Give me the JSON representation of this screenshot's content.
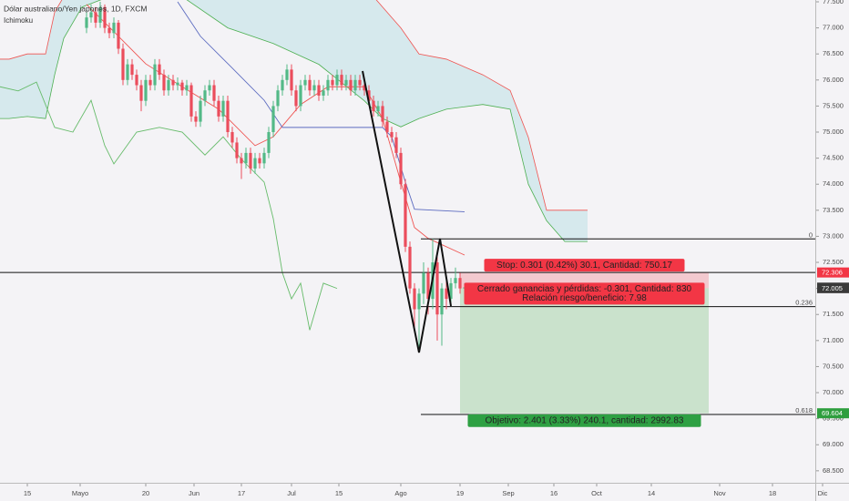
{
  "chart_data": {
    "type": "candlestick",
    "title": "Dólar australiano/Yen japonés, 1D, FXCM",
    "indicator": "Ichimoku",
    "up_color": "#53b987",
    "down_color": "#eb4d5c",
    "xlim": [
      0,
      181
    ],
    "ylim": [
      68.27,
      77.535
    ],
    "grid": false,
    "xticks": [
      {
        "value": 6,
        "label": "15"
      },
      {
        "value": 17.6,
        "label": "Mayo"
      },
      {
        "value": 32,
        "label": "20"
      },
      {
        "value": 42.6,
        "label": "Jun"
      },
      {
        "value": 53,
        "label": "17"
      },
      {
        "value": 64,
        "label": "Jul"
      },
      {
        "value": 74.4,
        "label": "15"
      },
      {
        "value": 88,
        "label": "Ago"
      },
      {
        "value": 101,
        "label": "19"
      },
      {
        "value": 111.6,
        "label": "Sep"
      },
      {
        "value": 121.6,
        "label": "16"
      },
      {
        "value": 131,
        "label": "Oct"
      },
      {
        "value": 143,
        "label": "14"
      },
      {
        "value": 158,
        "label": "Nov"
      },
      {
        "value": 169.6,
        "label": "18"
      },
      {
        "value": 180.6,
        "label": "Dic"
      }
    ],
    "yticks": [
      {
        "value": 68.5,
        "label": "68.500"
      },
      {
        "value": 69,
        "label": "69.000"
      },
      {
        "value": 69.5,
        "label": "69.500"
      },
      {
        "value": 70,
        "label": "70.000"
      },
      {
        "value": 70.5,
        "label": "70.500"
      },
      {
        "value": 71,
        "label": "71.000"
      },
      {
        "value": 71.5,
        "label": "71.500"
      },
      {
        "value": 72,
        "label": "72.000"
      },
      {
        "value": 72.5,
        "label": "72.500"
      },
      {
        "value": 73,
        "label": "73.000"
      },
      {
        "value": 73.5,
        "label": "73.500"
      },
      {
        "value": 74,
        "label": "74.000"
      },
      {
        "value": 74.5,
        "label": "74.500"
      },
      {
        "value": 75,
        "label": "75.000"
      },
      {
        "value": 75.5,
        "label": "75.500"
      },
      {
        "value": 76,
        "label": "76.000"
      },
      {
        "value": 76.5,
        "label": "76.500"
      },
      {
        "value": 77,
        "label": "77.000"
      },
      {
        "value": 77.5,
        "label": "77.500"
      }
    ],
    "x": [
      19,
      20,
      21,
      22,
      23,
      24,
      25,
      26,
      27,
      28,
      29,
      30,
      31,
      32,
      33,
      34,
      35,
      36,
      37,
      38,
      39,
      40,
      41,
      42,
      43,
      44,
      45,
      46,
      47,
      48,
      49,
      50,
      51,
      52,
      53,
      54,
      55,
      56,
      57,
      58,
      59,
      60,
      61,
      62,
      63,
      64,
      65,
      66,
      67,
      68,
      69,
      70,
      71,
      72,
      73,
      74,
      75,
      76,
      77,
      78,
      79,
      80,
      81,
      82,
      83,
      84,
      85,
      86,
      87,
      88,
      89,
      90,
      91,
      92,
      93,
      94,
      95,
      96,
      97,
      98,
      99,
      100,
      101,
      102
    ],
    "candles": [
      [
        77.0,
        77.35,
        76.9,
        77.2
      ],
      [
        77.2,
        77.45,
        77.1,
        77.3
      ],
      [
        77.3,
        77.4,
        77.0,
        77.1
      ],
      [
        77.1,
        77.5,
        77.0,
        77.4
      ],
      [
        77.4,
        77.45,
        76.9,
        77.0
      ],
      [
        77.0,
        77.1,
        76.8,
        76.9
      ],
      [
        76.9,
        77.2,
        76.8,
        77.1
      ],
      [
        77.1,
        77.15,
        76.5,
        76.6
      ],
      [
        76.6,
        76.7,
        75.9,
        76.0
      ],
      [
        76.0,
        76.4,
        75.9,
        76.3
      ],
      [
        76.3,
        76.4,
        76.0,
        76.1
      ],
      [
        76.1,
        76.2,
        75.8,
        75.9
      ],
      [
        75.9,
        76.0,
        75.4,
        75.6
      ],
      [
        75.6,
        76.1,
        75.5,
        76.0
      ],
      [
        76.0,
        76.1,
        75.8,
        75.9
      ],
      [
        75.9,
        76.4,
        75.8,
        76.3
      ],
      [
        76.3,
        76.4,
        76.0,
        76.1
      ],
      [
        76.1,
        76.2,
        75.7,
        75.8
      ],
      [
        75.8,
        76.1,
        75.7,
        76.0
      ],
      [
        76.0,
        76.1,
        75.8,
        75.9
      ],
      [
        75.9,
        76.05,
        75.8,
        75.95
      ],
      [
        75.95,
        76.0,
        75.7,
        75.8
      ],
      [
        75.8,
        76.0,
        75.7,
        75.9
      ],
      [
        75.9,
        75.95,
        75.2,
        75.3
      ],
      [
        75.3,
        75.4,
        75.1,
        75.2
      ],
      [
        75.2,
        75.7,
        75.1,
        75.6
      ],
      [
        75.6,
        75.9,
        75.5,
        75.8
      ],
      [
        75.8,
        76.0,
        75.7,
        75.9
      ],
      [
        75.9,
        76.0,
        75.5,
        75.6
      ],
      [
        75.6,
        75.7,
        75.2,
        75.3
      ],
      [
        75.3,
        75.7,
        75.2,
        75.6
      ],
      [
        75.6,
        75.7,
        74.9,
        75.0
      ],
      [
        75.0,
        75.1,
        74.7,
        74.8
      ],
      [
        74.8,
        74.9,
        74.4,
        74.5
      ],
      [
        74.5,
        74.6,
        74.1,
        74.4
      ],
      [
        74.4,
        74.7,
        74.3,
        74.6
      ],
      [
        74.6,
        74.7,
        74.2,
        74.3
      ],
      [
        74.3,
        74.6,
        74.2,
        74.5
      ],
      [
        74.5,
        74.6,
        74.3,
        74.4
      ],
      [
        74.4,
        74.7,
        74.3,
        74.6
      ],
      [
        74.6,
        75.1,
        74.5,
        75.0
      ],
      [
        75.0,
        75.6,
        74.9,
        75.5
      ],
      [
        75.5,
        75.9,
        75.4,
        75.8
      ],
      [
        75.8,
        76.1,
        75.7,
        76.0
      ],
      [
        76.0,
        76.3,
        75.9,
        76.2
      ],
      [
        76.2,
        76.3,
        75.7,
        75.8
      ],
      [
        75.8,
        75.9,
        75.4,
        75.5
      ],
      [
        75.5,
        76.0,
        75.4,
        75.9
      ],
      [
        75.9,
        76.1,
        75.8,
        76.0
      ],
      [
        76.0,
        76.1,
        75.7,
        75.8
      ],
      [
        75.8,
        76.0,
        75.7,
        75.9
      ],
      [
        75.9,
        76.0,
        75.6,
        75.7
      ],
      [
        75.7,
        75.9,
        75.6,
        75.8
      ],
      [
        75.8,
        76.1,
        75.7,
        76.0
      ],
      [
        76.0,
        76.1,
        75.8,
        75.9
      ],
      [
        75.9,
        76.2,
        75.8,
        76.1
      ],
      [
        76.1,
        76.2,
        75.8,
        75.9
      ],
      [
        75.9,
        76.1,
        75.8,
        76.0
      ],
      [
        76.0,
        76.1,
        75.7,
        75.8
      ],
      [
        75.8,
        76.1,
        75.7,
        76.0
      ],
      [
        76.0,
        76.1,
        75.8,
        75.9
      ],
      [
        75.9,
        76.0,
        75.7,
        75.8
      ],
      [
        75.8,
        75.9,
        75.5,
        75.6
      ],
      [
        75.6,
        75.7,
        75.3,
        75.4
      ],
      [
        75.4,
        75.6,
        75.3,
        75.5
      ],
      [
        75.5,
        75.6,
        75.1,
        75.2
      ],
      [
        75.2,
        75.3,
        74.9,
        75.0
      ],
      [
        75.0,
        75.1,
        74.8,
        74.9
      ],
      [
        74.9,
        75.0,
        74.5,
        74.6
      ],
      [
        74.6,
        74.7,
        73.9,
        74.0
      ],
      [
        74.0,
        74.1,
        72.7,
        72.8
      ],
      [
        72.8,
        72.9,
        71.9,
        72.0
      ],
      [
        72.0,
        72.1,
        71.2,
        71.6
      ],
      [
        71.6,
        72.0,
        70.8,
        71.9
      ],
      [
        71.9,
        72.5,
        71.7,
        72.3
      ],
      [
        72.3,
        72.4,
        71.5,
        71.8
      ],
      [
        71.8,
        72.95,
        71.6,
        72.5
      ],
      [
        72.5,
        72.6,
        71.0,
        71.5
      ],
      [
        71.5,
        72.1,
        70.9,
        72.0
      ],
      [
        72.0,
        72.2,
        71.6,
        71.8
      ],
      [
        71.8,
        72.2,
        71.7,
        72.1
      ],
      [
        72.1,
        72.4,
        72.0,
        72.2
      ],
      [
        72.2,
        72.3,
        71.9,
        72.0
      ],
      [
        72.0,
        72.1,
        71.95,
        72.02
      ]
    ],
    "cloud": {
      "x": [
        0,
        2,
        6,
        10,
        12,
        14,
        18,
        24,
        32,
        40,
        50,
        60,
        70,
        80,
        84,
        88,
        92,
        98,
        106,
        112,
        116,
        120,
        124,
        129
      ],
      "span_a": [
        75.26,
        75.26,
        75.3,
        75.26,
        76.1,
        76.8,
        77.4,
        77.6,
        77.7,
        77.6,
        77.0,
        76.7,
        76.3,
        75.6,
        75.26,
        75.1,
        75.26,
        75.44,
        75.53,
        75.44,
        74.0,
        73.3,
        72.9,
        72.9
      ],
      "span_b": [
        76.4,
        76.4,
        76.5,
        76.5,
        77.3,
        77.6,
        77.8,
        77.8,
        77.8,
        77.8,
        77.8,
        77.8,
        77.8,
        77.8,
        77.4,
        77.0,
        76.5,
        76.4,
        76.1,
        75.8,
        74.9,
        73.5,
        73.5,
        73.5
      ],
      "color_a": "#4caf50",
      "color_b": "#ef5350",
      "fill": "#bde0e6"
    },
    "lines": [
      {
        "color": "#ef5350",
        "x": [
          19,
          26,
          32,
          40,
          48,
          56,
          60,
          66,
          72,
          80,
          84,
          88,
          91,
          94,
          102
        ],
        "values": [
          77.45,
          76.84,
          76.31,
          75.87,
          75.44,
          74.74,
          74.91,
          75.53,
          75.87,
          75.87,
          75.26,
          74.04,
          73.17,
          72.96,
          72.64
        ]
      },
      {
        "color": "#5c6bc0",
        "x": [
          39,
          44,
          48,
          52,
          58,
          62,
          80,
          84,
          86,
          89,
          91,
          102
        ],
        "values": [
          77.5,
          76.84,
          76.49,
          76.14,
          75.61,
          75.09,
          75.09,
          75.09,
          74.91,
          74.04,
          73.52,
          73.47
        ]
      },
      {
        "color": "#66bb6a",
        "x": [
          0,
          4,
          8,
          12,
          16,
          20,
          23,
          25,
          30,
          35,
          40,
          45,
          49,
          53,
          58,
          60,
          62,
          64,
          66,
          68,
          71,
          74
        ],
        "values": [
          75.87,
          75.79,
          75.96,
          75.09,
          75.0,
          75.61,
          74.74,
          74.39,
          75.0,
          75.09,
          75.0,
          74.56,
          74.91,
          74.48,
          74.04,
          73.34,
          72.3,
          71.8,
          72.1,
          71.2,
          72.1,
          72.0
        ]
      }
    ],
    "horizontal_line": 72.306,
    "fib_levels": [
      {
        "level": 0,
        "price": 72.95
      },
      {
        "level": 0.236,
        "price": 71.65
      },
      {
        "level": 0.618,
        "price": 69.58
      }
    ],
    "position": {
      "entry": 72.005,
      "stop": 72.306,
      "target": 69.604,
      "stop_label": "Stop: 0.301 (0.42%) 30.1, Cantidad: 750.17",
      "pnl_label": "Cerrado ganancias y pérdidas: -0.301, Cantidad: 830",
      "ratio_label": "Relación riesgo/beneficio: 7.98",
      "target_label": "Objetivo: 2.401 (3.33%) 240.1, cantidad: 2992.83"
    },
    "price_labels": [
      {
        "value": 72.306,
        "color": "#f23645"
      },
      {
        "value": 72.019,
        "color": "#6d6d6d"
      },
      {
        "value": 72.005,
        "color": "#3a3a3a"
      },
      {
        "value": 69.604,
        "color": "#2e9e3e"
      }
    ]
  }
}
